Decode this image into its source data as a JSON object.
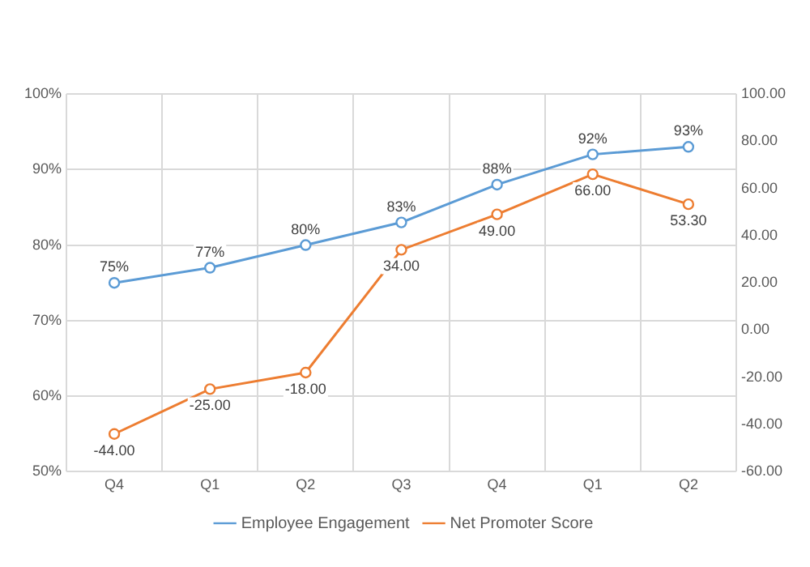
{
  "chart_data": {
    "type": "line",
    "categories": [
      "Q4",
      "Q1",
      "Q2",
      "Q3",
      "Q4",
      "Q1",
      "Q2"
    ],
    "series": [
      {
        "name": "Employee Engagement",
        "color": "#5b9bd5",
        "values": [
          75,
          77,
          80,
          83,
          88,
          92,
          93
        ],
        "value_labels": [
          "75%",
          "77%",
          "80%",
          "83%",
          "88%",
          "92%",
          "93%"
        ]
      },
      {
        "name": "Net Promoter Score",
        "color": "#ed7d31",
        "axis": "y2",
        "values": [
          -44,
          -25,
          -18,
          34,
          49,
          66,
          53.3
        ],
        "value_labels": [
          "-44.00",
          "-25.00",
          "-18.00",
          "34.00",
          "49.00",
          "66.00",
          "53.30"
        ]
      }
    ],
    "ylim": [
      50,
      100
    ],
    "yticks": [
      {
        "value": 50,
        "label": "50%"
      },
      {
        "value": 60,
        "label": "60%"
      },
      {
        "value": 70,
        "label": "70%"
      },
      {
        "value": 80,
        "label": "80%"
      },
      {
        "value": 90,
        "label": "90%"
      },
      {
        "value": 100,
        "label": "100%"
      }
    ],
    "y2lim": [
      -60,
      100
    ],
    "y2ticks": [
      {
        "value": -60,
        "label": "-60.00"
      },
      {
        "value": -40,
        "label": "-40.00"
      },
      {
        "value": -20,
        "label": "-20.00"
      },
      {
        "value": 0,
        "label": "0.00"
      },
      {
        "value": 20,
        "label": "20.00"
      },
      {
        "value": 40,
        "label": "40.00"
      },
      {
        "value": 60,
        "label": "60.00"
      },
      {
        "value": 80,
        "label": "80.00"
      },
      {
        "value": 100,
        "label": "100.00"
      }
    ],
    "grid": true,
    "legend": "bottom",
    "marker": "circle",
    "line_style": "solid"
  }
}
